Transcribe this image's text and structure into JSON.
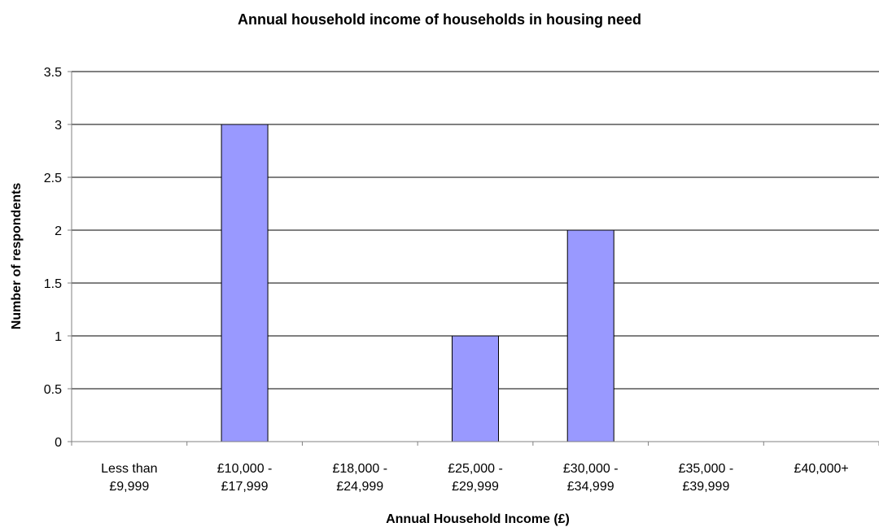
{
  "chart_data": {
    "type": "bar",
    "title": "Annual household income of households in housing need",
    "xlabel": "Annual Household Income (£)",
    "ylabel": "Number of respondents",
    "categories": [
      [
        "Less than",
        "£9,999"
      ],
      [
        "£10,000 -",
        "£17,999"
      ],
      [
        "£18,000 -",
        "£24,999"
      ],
      [
        "£25,000 -",
        "£29,999"
      ],
      [
        "£30,000 -",
        "£34,999"
      ],
      [
        "£35,000 -",
        "£39,999"
      ],
      [
        "£40,000+"
      ]
    ],
    "values": [
      0,
      3,
      0,
      1,
      2,
      0,
      0
    ],
    "ylim": [
      0,
      3.5
    ],
    "yticks": [
      "0",
      "0.5",
      "1",
      "1.5",
      "2",
      "2.5",
      "3",
      "3.5"
    ],
    "grid": true,
    "legend": "none",
    "colors": {
      "bar_fill": "#9999ff",
      "bar_stroke": "#000000",
      "grid": "#000000",
      "axis": "#808080"
    }
  }
}
